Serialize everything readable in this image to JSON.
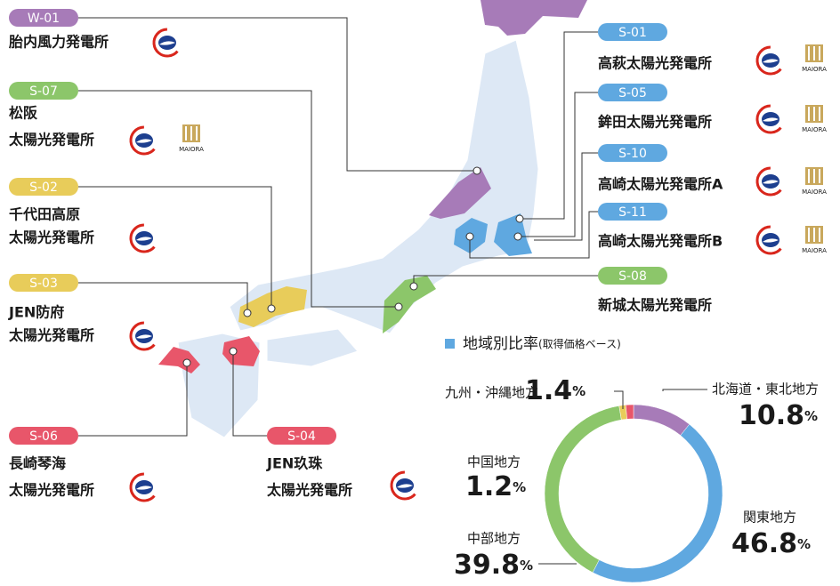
{
  "plants": [
    {
      "code": "W-01",
      "name_lines": [
        "胎内風力発電所"
      ],
      "color": "#a77bb8"
    },
    {
      "code": "S-07",
      "name_lines": [
        "松阪",
        "太陽光発電所"
      ],
      "color": "#8cc66a",
      "partner": "MAIORA"
    },
    {
      "code": "S-02",
      "name_lines": [
        "千代田高原",
        "太陽光発電所"
      ],
      "color": "#e8cc5a"
    },
    {
      "code": "S-03",
      "name_lines": [
        "JEN防府",
        "太陽光発電所"
      ],
      "color": "#e8cc5a"
    },
    {
      "code": "S-06",
      "name_lines": [
        "長崎琴海",
        "太陽光発電所"
      ],
      "color": "#e8566a"
    },
    {
      "code": "S-04",
      "name_lines": [
        "JEN玖珠",
        "太陽光発電所"
      ],
      "color": "#e8566a"
    },
    {
      "code": "S-01",
      "name_lines": [
        "高萩太陽光発電所"
      ],
      "color": "#5fa8e0",
      "partner": "MAIORA"
    },
    {
      "code": "S-05",
      "name_lines": [
        "鉾田太陽光発電所"
      ],
      "color": "#5fa8e0",
      "partner": "MAIORA"
    },
    {
      "code": "S-10",
      "name_lines": [
        "高崎太陽光発電所A"
      ],
      "color": "#5fa8e0",
      "partner": "MAIORA"
    },
    {
      "code": "S-11",
      "name_lines": [
        "高崎太陽光発電所B"
      ],
      "color": "#5fa8e0",
      "partner": "MAIORA"
    },
    {
      "code": "S-08",
      "name_lines": [
        "新城太陽光発電所"
      ],
      "color": "#8cc66a"
    }
  ],
  "chart_data": {
    "type": "donut",
    "title": "地域別比率",
    "subtitle": "(取得価格ベース)",
    "categories": [
      "北海道・東北地方",
      "関東地方",
      "中部地方",
      "中国地方",
      "九州・沖縄地方"
    ],
    "values": [
      10.8,
      46.8,
      39.8,
      1.2,
      1.4
    ],
    "unit": "%",
    "colors": [
      "#a77bb8",
      "#5fa8e0",
      "#8cc66a",
      "#e8cc5a",
      "#e8566a"
    ],
    "legend_color": "#5fa8e0"
  }
}
